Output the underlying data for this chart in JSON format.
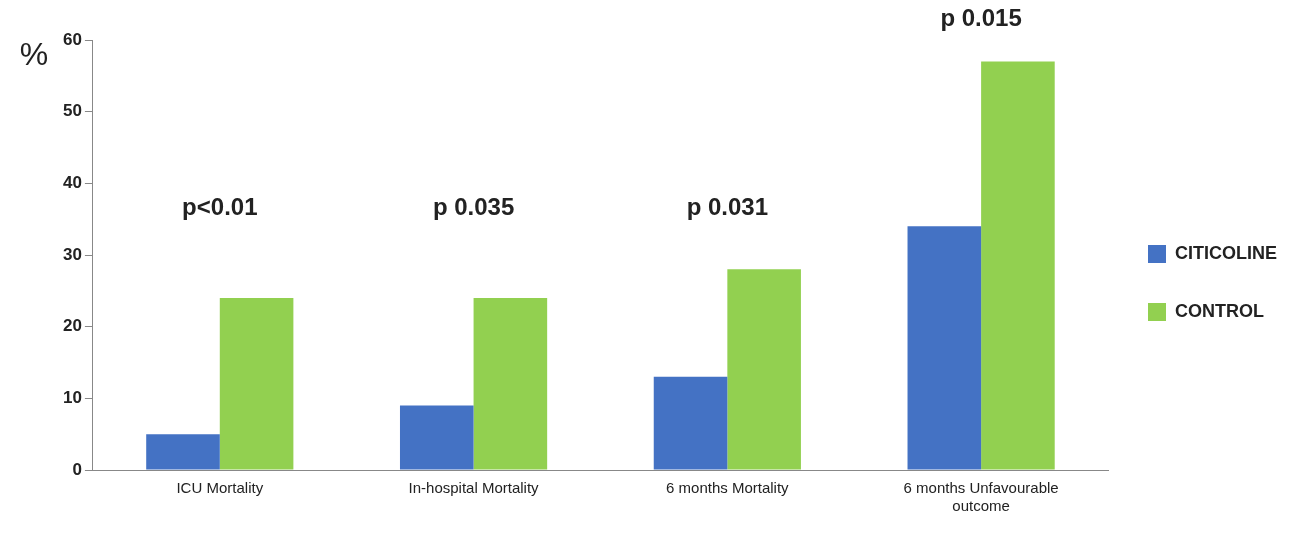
{
  "chart_data": {
    "type": "bar",
    "ylabel": "%",
    "categories": [
      "ICU Mortality",
      "In-hospital Mortality",
      "6 months Mortality",
      "6 months Unfavourable outcome"
    ],
    "series": [
      {
        "name": "CITICOLINE",
        "color": "#4472c4",
        "values": [
          5,
          9,
          13,
          34
        ]
      },
      {
        "name": "CONTROL",
        "color": "#92d050",
        "values": [
          24,
          24,
          28,
          57
        ]
      }
    ],
    "ylim": [
      0,
      60
    ],
    "yticks": [
      0,
      10,
      20,
      30,
      40,
      50,
      60
    ],
    "legend": "right",
    "annotations": [
      "p<0.01",
      "p 0.035",
      "p 0.031",
      "p 0.015"
    ]
  }
}
